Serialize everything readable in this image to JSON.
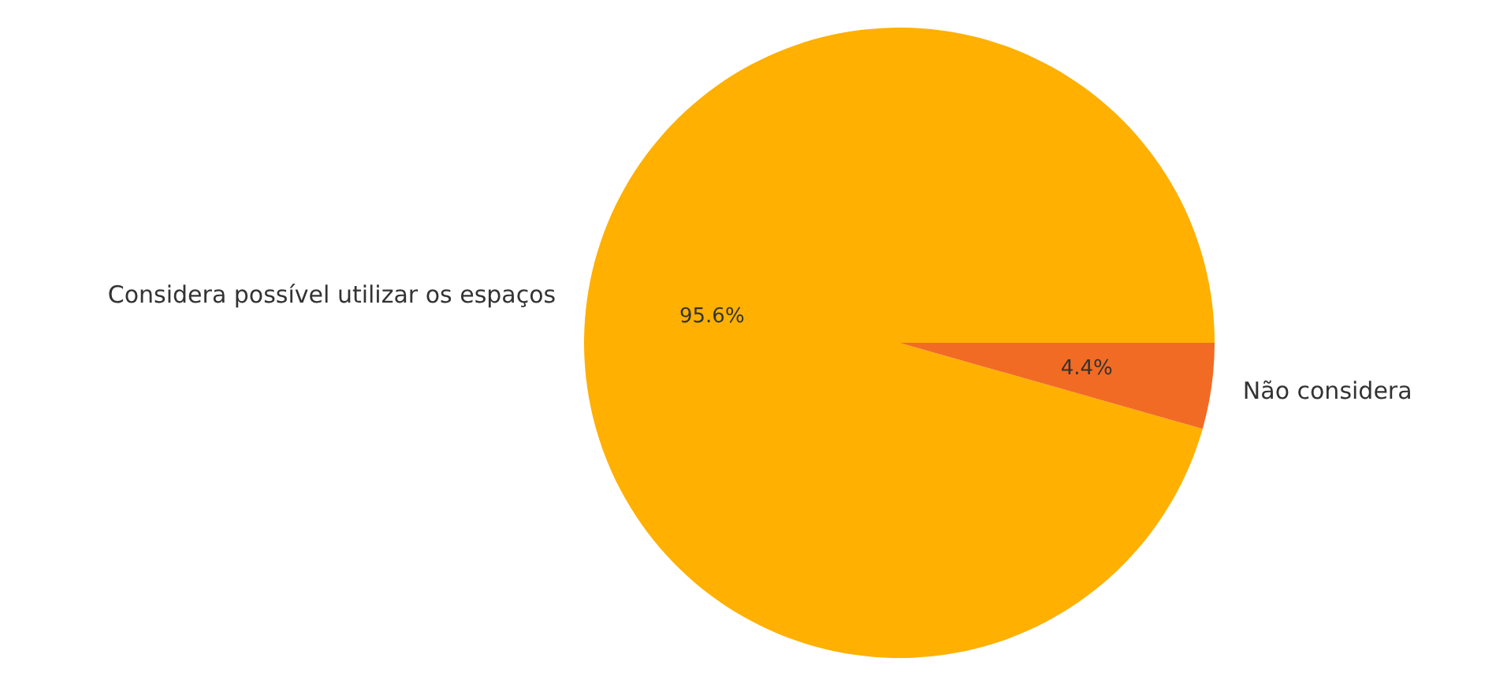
{
  "chart_data": {
    "type": "pie",
    "categories": [
      "Considera possível utilizar os espaços",
      "Não considera"
    ],
    "values": [
      95.6,
      4.4
    ],
    "colors": [
      "#ffb000",
      "#f26b24"
    ],
    "value_labels": [
      "95.6%",
      "4.4%"
    ]
  }
}
